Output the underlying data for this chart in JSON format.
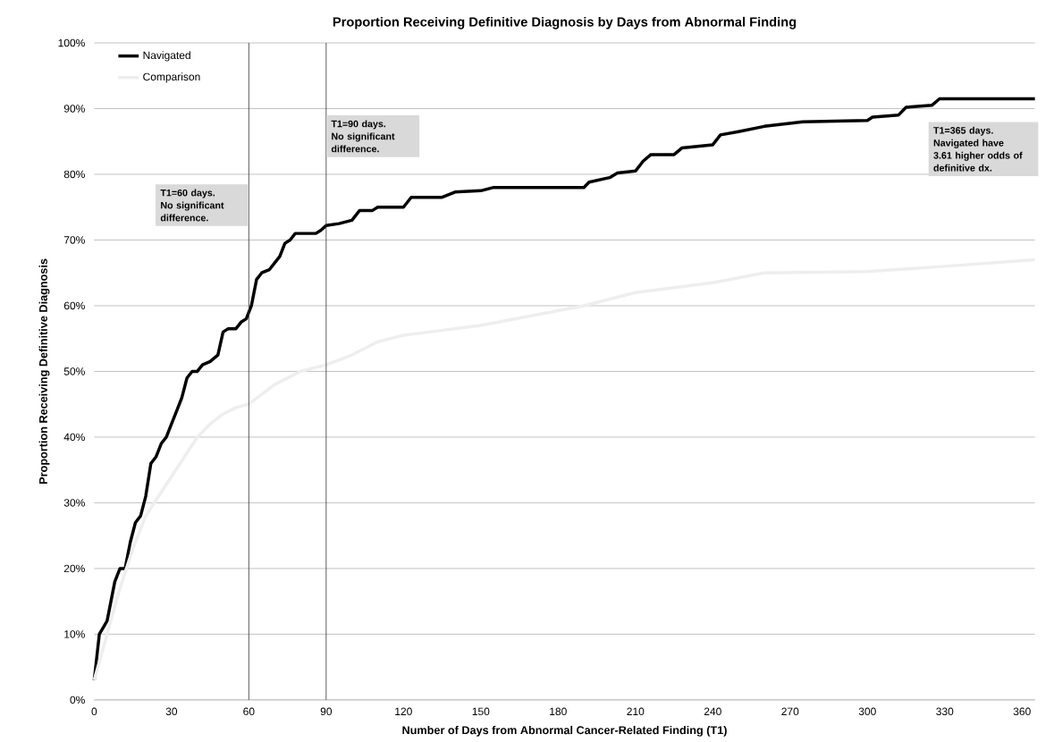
{
  "chart_data": {
    "type": "line",
    "title": "Proportion Receiving Definitive Diagnosis by Days from Abnormal Finding",
    "xlabel": "Number of Days from Abnormal Cancer-Related Finding (T1)",
    "ylabel": "Proportion Receiving Definitive Diagnosis",
    "xlim": [
      0,
      365
    ],
    "xticks": [
      0,
      30,
      60,
      90,
      120,
      150,
      180,
      210,
      240,
      270,
      300,
      330,
      360
    ],
    "ylim": [
      0,
      100
    ],
    "yticks": [
      {
        "value": 0,
        "label": "0%"
      },
      {
        "value": 10,
        "label": "10%"
      },
      {
        "value": 20,
        "label": "20%"
      },
      {
        "value": 30,
        "label": "30%"
      },
      {
        "value": 40,
        "label": "40%"
      },
      {
        "value": 50,
        "label": "50%"
      },
      {
        "value": 60,
        "label": "60%"
      },
      {
        "value": 70,
        "label": "70%"
      },
      {
        "value": 80,
        "label": "80%"
      },
      {
        "value": 90,
        "label": "90%"
      },
      {
        "value": 100,
        "label": "100%"
      }
    ],
    "grid": "y",
    "legend": "top left",
    "marker": "none",
    "line_style": "solid",
    "series": [
      {
        "name": "Navigated",
        "color": "#000000",
        "x": [
          0,
          2,
          5,
          8,
          10,
          12,
          14,
          16,
          18,
          20,
          22,
          24,
          26,
          28,
          30,
          32,
          34,
          36,
          38,
          40,
          42,
          45,
          48,
          50,
          52,
          55,
          57,
          59,
          61,
          63,
          65,
          68,
          70,
          72,
          74,
          76,
          78,
          82,
          86,
          88,
          90,
          95,
          100,
          103,
          108,
          110,
          120,
          123,
          135,
          140,
          150,
          155,
          190,
          192,
          200,
          203,
          210,
          213,
          216,
          225,
          228,
          240,
          243,
          250,
          260,
          275,
          300,
          302,
          312,
          315,
          325,
          328,
          365
        ],
        "values": [
          3,
          10,
          12,
          18,
          20,
          20,
          24,
          27,
          28,
          31,
          36,
          37,
          39,
          40,
          42,
          44,
          46,
          49,
          50,
          50,
          51,
          51.5,
          52.5,
          56,
          56.5,
          56.5,
          57.5,
          58,
          60,
          64,
          65,
          65.5,
          66.5,
          67.5,
          69.5,
          70,
          71,
          71,
          71,
          71.5,
          72.2,
          72.5,
          73,
          74.5,
          74.5,
          75,
          75,
          76.5,
          76.5,
          77.3,
          77.5,
          78,
          78,
          78.8,
          79.5,
          80.2,
          80.5,
          82,
          83,
          83,
          84,
          84.5,
          86,
          86.5,
          87.3,
          88,
          88.2,
          88.7,
          89,
          90.2,
          90.5,
          91.5,
          91.5
        ]
      },
      {
        "name": "Comparison",
        "color": "#eeeeee",
        "x": [
          0,
          5,
          10,
          15,
          20,
          25,
          30,
          35,
          40,
          45,
          50,
          55,
          60,
          65,
          70,
          80,
          90,
          100,
          110,
          120,
          130,
          150,
          170,
          190,
          200,
          210,
          240,
          260,
          300,
          330,
          365
        ],
        "values": [
          3,
          10,
          17,
          23,
          28,
          31,
          34,
          37,
          40,
          42,
          43.5,
          44.5,
          45,
          46.5,
          48,
          50,
          51,
          52.5,
          54.5,
          55.5,
          56,
          57,
          58.5,
          60,
          61,
          62,
          63.5,
          65,
          65.2,
          66,
          67
        ]
      }
    ],
    "ref_lines": [
      {
        "axis": "x",
        "value": 60,
        "label": "T1=60 days. No significant difference.",
        "color": "#333333"
      },
      {
        "axis": "x",
        "value": 90,
        "label": "T1=90 days. No significant difference.",
        "color": "#333333"
      }
    ],
    "annotations": [
      "T1=365 days. Navigated have 3.61 higher odds of definitive dx."
    ]
  }
}
